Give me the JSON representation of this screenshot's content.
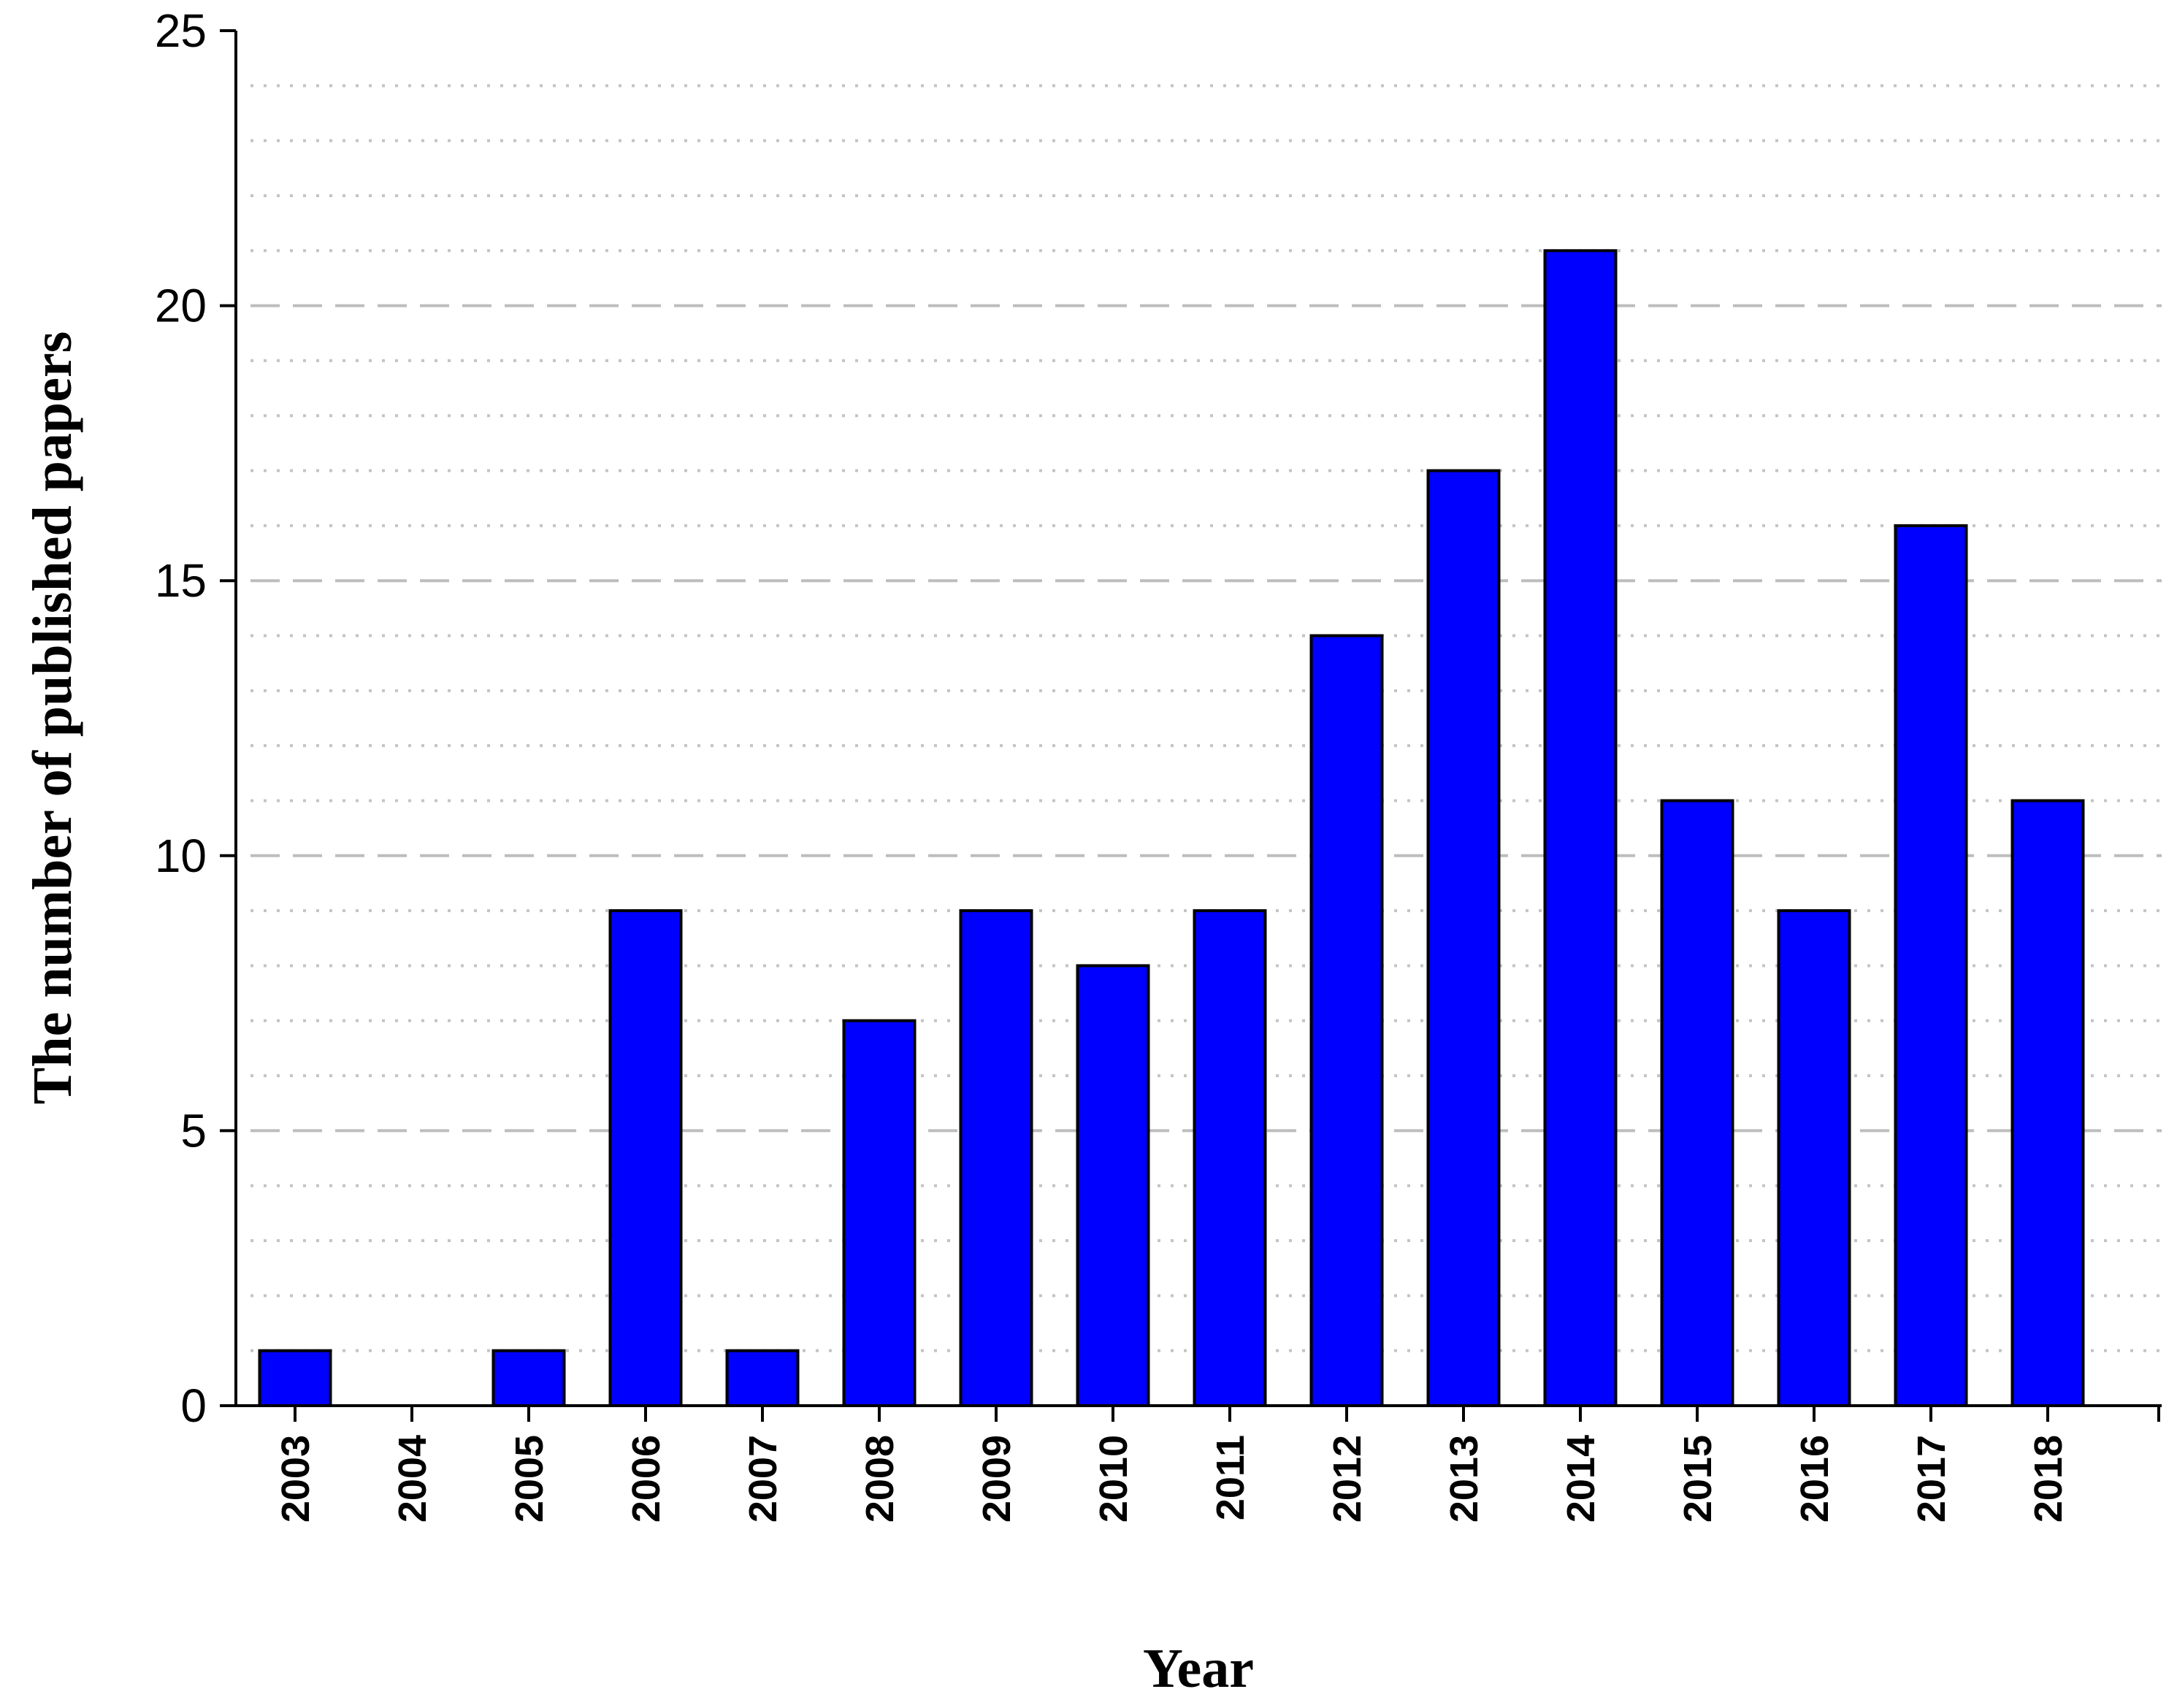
{
  "chart_data": {
    "type": "bar",
    "categories": [
      "2003",
      "2004",
      "2005",
      "2006",
      "2007",
      "2008",
      "2009",
      "2010",
      "2011",
      "2012",
      "2013",
      "2014",
      "2015",
      "2016",
      "2017",
      "2018"
    ],
    "values": [
      1,
      0,
      1,
      9,
      1,
      7,
      9,
      8,
      9,
      14,
      17,
      21,
      11,
      9,
      16,
      11
    ],
    "xlabel": "Year",
    "ylabel": "The number of published papers",
    "ylim": [
      0,
      25
    ],
    "yticks": [
      "0",
      "5",
      "10",
      "15",
      "20",
      "25"
    ],
    "grid": "major dashed, minor dotted",
    "bar_color": "#0000ff"
  }
}
